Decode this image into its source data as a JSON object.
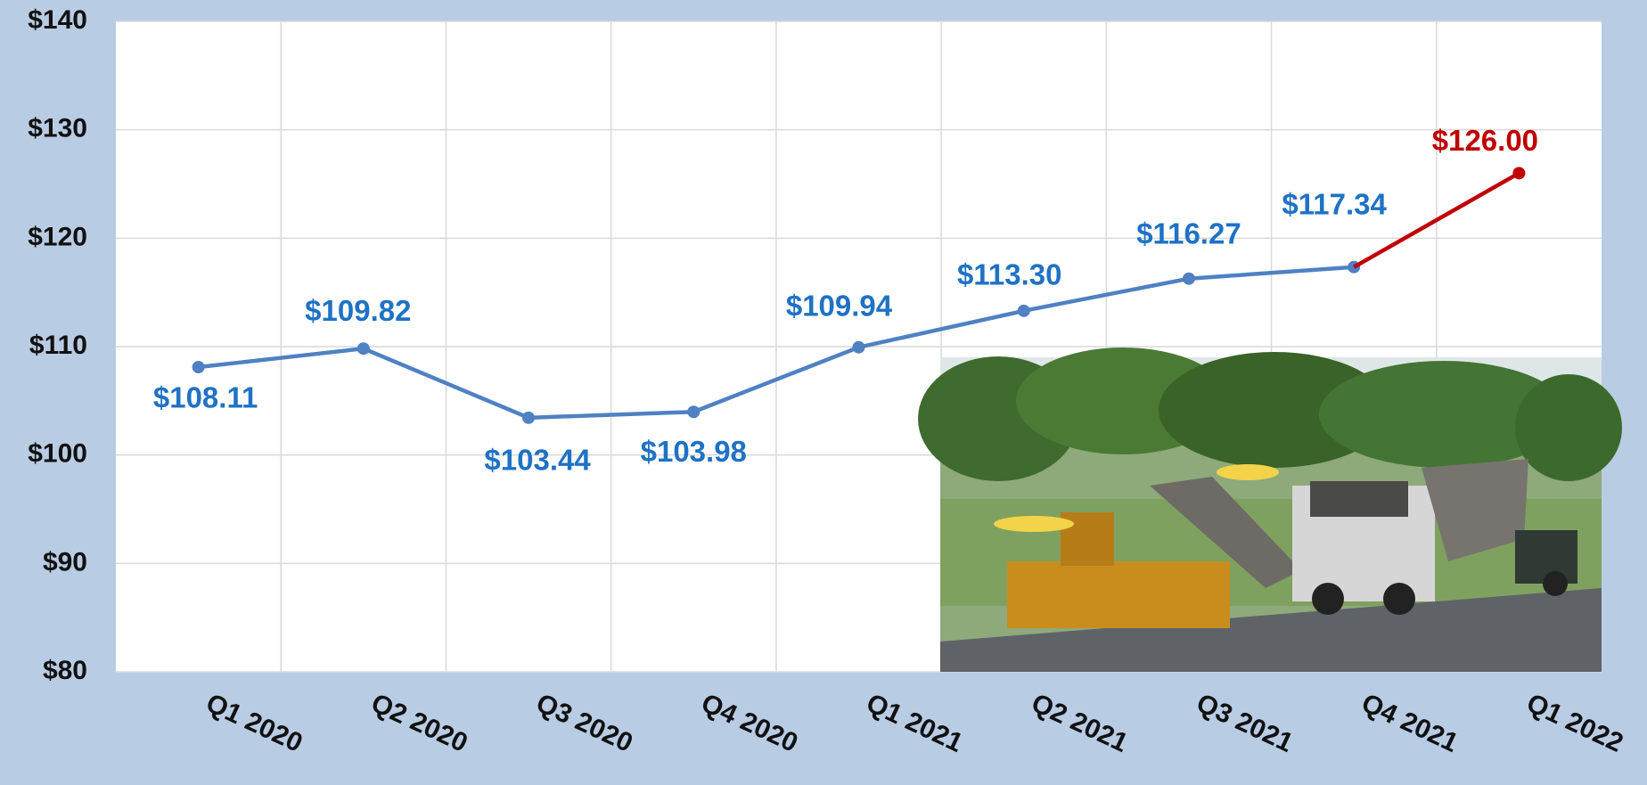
{
  "chart_data": {
    "type": "line",
    "categories": [
      "Q1 2020",
      "Q2 2020",
      "Q3 2020",
      "Q4 2020",
      "Q1 2021",
      "Q2 2021",
      "Q3 2021",
      "Q4 2021",
      "Q1 2022"
    ],
    "series": [
      {
        "color": "#4f81c3",
        "label_color": "#1f72c4",
        "values": [
          108.11,
          109.82,
          103.44,
          103.98,
          109.94,
          113.3,
          116.27,
          117.34,
          null
        ],
        "value_labels": [
          "$108.11",
          "$109.82",
          "$103.44",
          "$103.98",
          "$109.94",
          "$113.30",
          "$116.27",
          "$117.34",
          null
        ]
      },
      {
        "color": "#c00000",
        "label_color": "#c00000",
        "values": [
          null,
          null,
          null,
          null,
          null,
          null,
          null,
          null,
          126.0
        ],
        "value_labels": [
          null,
          null,
          null,
          null,
          null,
          null,
          null,
          null,
          "$126.00"
        ]
      }
    ],
    "ylim": [
      80,
      140
    ],
    "yticks": [
      {
        "value": 80,
        "label": "$80"
      },
      {
        "value": 90,
        "label": "$90"
      },
      {
        "value": 100,
        "label": "$100"
      },
      {
        "value": 110,
        "label": "$110"
      },
      {
        "value": 120,
        "label": "$120"
      },
      {
        "value": 130,
        "label": "$130"
      },
      {
        "value": 140,
        "label": "$140"
      }
    ],
    "grid": true
  }
}
